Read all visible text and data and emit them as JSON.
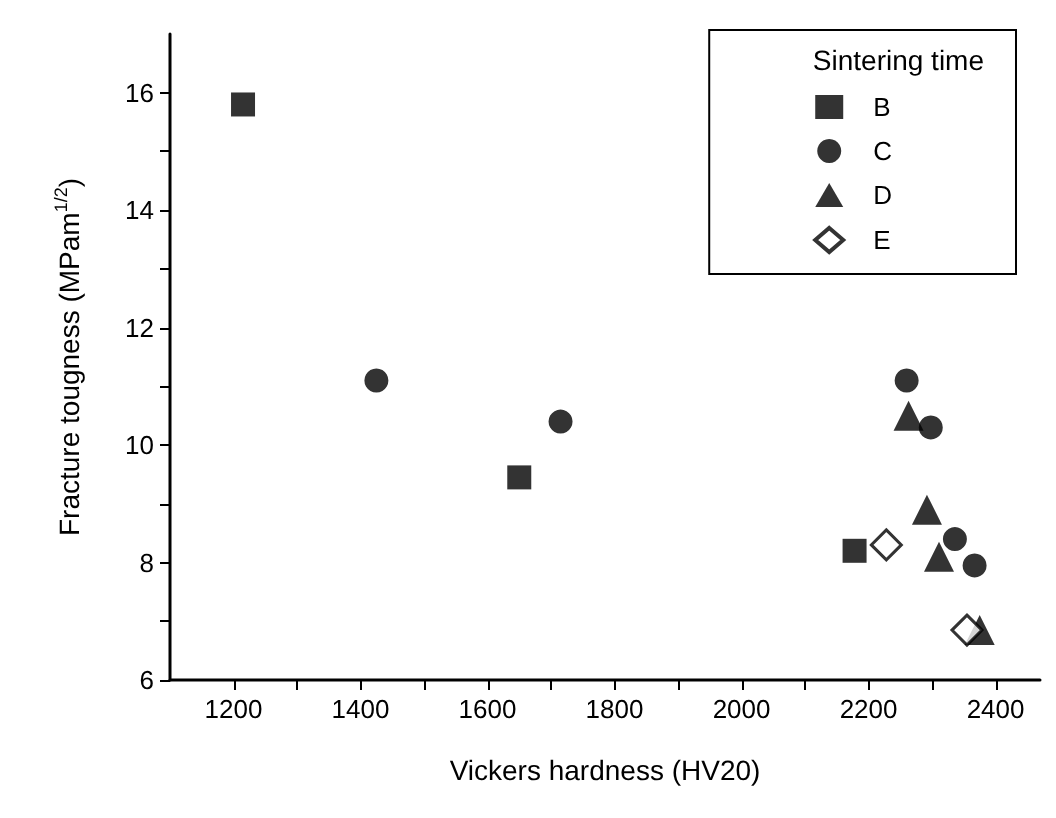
{
  "chart_data": {
    "type": "scatter",
    "xlabel": "Vickers hardness (HV20)",
    "ylabel": "Fracture tougness (MPam$^{1/2}$)",
    "legend_title": "Sintering time",
    "legend": "top right",
    "grid": false,
    "xlim": [
      1100,
      2470
    ],
    "ylim": [
      6,
      17
    ],
    "xticks": [
      1200,
      {
        "value": 1300,
        "label": null
      },
      1400,
      {
        "value": 1500,
        "label": null
      },
      1600,
      {
        "value": 1700,
        "label": null
      },
      1800,
      {
        "value": 1900,
        "label": null
      },
      2000,
      {
        "value": 2100,
        "label": null
      },
      2200,
      {
        "value": 2300,
        "label": null
      },
      2400
    ],
    "yticks": [
      6,
      {
        "value": 7,
        "label": null
      },
      8,
      {
        "value": 9,
        "label": null
      },
      10,
      {
        "value": 11,
        "label": null
      },
      12,
      {
        "value": 13,
        "label": null
      },
      14,
      {
        "value": 15,
        "label": null
      },
      16
    ],
    "series": [
      {
        "name": "B",
        "color": "#000000",
        "marker": "square",
        "x": [
          1215,
          1650,
          2178
        ],
        "values": [
          15.8,
          9.45,
          8.2
        ]
      },
      {
        "name": "C",
        "color": "#000000",
        "marker": "circle",
        "x": [
          1425,
          1715,
          2260,
          2298,
          2336,
          2367
        ],
        "values": [
          11.1,
          10.4,
          11.1,
          10.3,
          8.4,
          7.95
        ]
      },
      {
        "name": "D",
        "color": "#000000",
        "marker": "triangle",
        "x": [
          2263,
          2292,
          2311,
          2375
        ],
        "values": [
          10.5,
          8.9,
          8.1,
          6.85
        ]
      },
      {
        "name": "E",
        "color": "#000000",
        "marker": "diamond",
        "x": [
          2228,
          2355
        ],
        "values": [
          8.3,
          6.85
        ]
      }
    ]
  }
}
